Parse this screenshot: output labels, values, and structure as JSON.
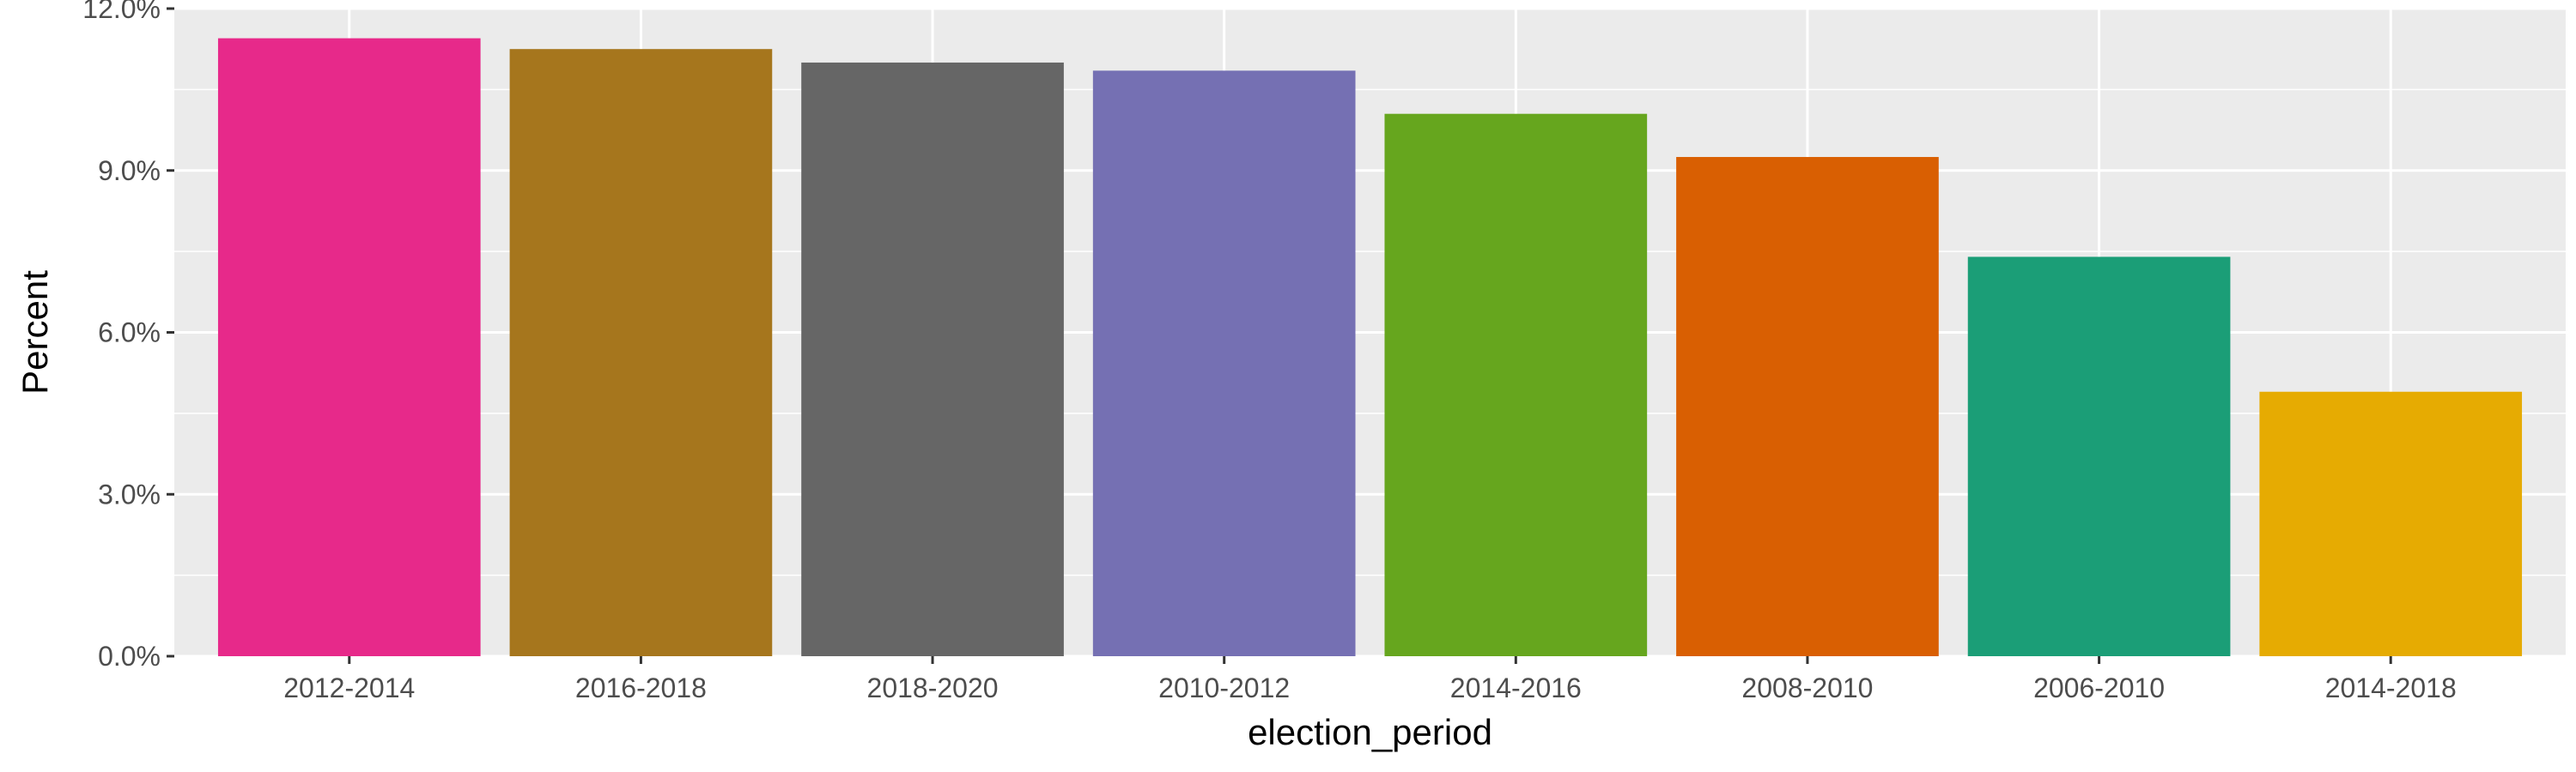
{
  "chart_data": {
    "type": "bar",
    "title": "",
    "xlabel": "election_period",
    "ylabel": "Percent",
    "categories": [
      "2012-2014",
      "2016-2018",
      "2018-2020",
      "2010-2012",
      "2014-2016",
      "2008-2010",
      "2006-2010",
      "2014-2018"
    ],
    "values": [
      11.45,
      11.25,
      11.0,
      10.85,
      10.05,
      9.25,
      7.4,
      4.9
    ],
    "colors": [
      "#e7298a",
      "#a6761d",
      "#666666",
      "#7570b3",
      "#66a61e",
      "#d95f02",
      "#1b9e77",
      "#e6ab02"
    ],
    "ylim": [
      0,
      12
    ],
    "y_ticks": [
      0,
      3,
      6,
      9,
      12
    ],
    "y_tick_labels": [
      "0.0%",
      "3.0%",
      "6.0%",
      "9.0%",
      "12.0%"
    ],
    "grid": true,
    "legend": "none",
    "panel_background": "#ebebeb",
    "grid_color": "#ffffff"
  }
}
